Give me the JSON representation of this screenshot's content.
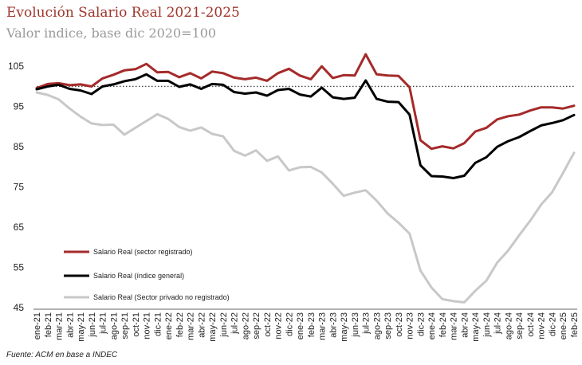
{
  "title": "Evolución Salario Real 2021-2025",
  "subtitle": "Valor indice, base dic 2020=100",
  "source": "Fuente: ACM en base a INDEC",
  "chart_data": {
    "type": "line",
    "ylim": [
      45,
      110
    ],
    "yticks": [
      45,
      55,
      65,
      75,
      85,
      95,
      105
    ],
    "reference_line": 100,
    "x": [
      "ene-21",
      "feb-21",
      "mar-21",
      "abr-21",
      "may-21",
      "jun-21",
      "jul-21",
      "ago-21",
      "sep-21",
      "oct-21",
      "nov-21",
      "dic-21",
      "ene-22",
      "feb-22",
      "mar-22",
      "abr-22",
      "may-22",
      "jun-22",
      "jul-22",
      "ago-22",
      "sep-22",
      "oct-22",
      "nov-22",
      "dic-22",
      "ene-23",
      "feb-23",
      "mar-23",
      "abr-23",
      "may-23",
      "jun-23",
      "jul-23",
      "ago-23",
      "sep-23",
      "oct-23",
      "nov-23",
      "dic-23",
      "ene-24",
      "feb-24",
      "mar-24",
      "abr-24",
      "may-24",
      "jun-24",
      "jul-24",
      "ago-24",
      "sep-24",
      "oct-24",
      "nov-24",
      "dic-24",
      "ene-25",
      "feb-25"
    ],
    "series": [
      {
        "name": "Salario Real (sector registrado)",
        "color": "#a52a2a",
        "values": [
          99.6,
          100.6,
          100.8,
          100.3,
          100.5,
          100.0,
          102.0,
          102.9,
          104.0,
          104.3,
          105.6,
          103.5,
          103.6,
          102.3,
          103.3,
          102.0,
          103.7,
          103.3,
          102.2,
          101.8,
          102.2,
          101.4,
          103.3,
          104.4,
          102.7,
          101.8,
          105.0,
          102.1,
          102.8,
          102.7,
          108.0,
          103.0,
          102.7,
          102.6,
          99.8,
          86.6,
          84.5,
          85.1,
          84.6,
          85.9,
          88.8,
          89.7,
          91.8,
          92.6,
          93.0,
          94.0,
          94.8,
          94.8,
          94.5,
          95.2
        ]
      },
      {
        "name": "Salario Real (índice general)",
        "color": "#000000",
        "values": [
          99.3,
          100.0,
          100.4,
          99.4,
          99.0,
          98.1,
          100.0,
          100.5,
          101.3,
          101.8,
          103.0,
          101.4,
          101.4,
          99.9,
          100.5,
          99.4,
          100.6,
          100.4,
          98.6,
          98.2,
          98.5,
          97.7,
          99.1,
          99.4,
          98.0,
          97.5,
          99.7,
          97.3,
          96.9,
          97.2,
          101.5,
          96.9,
          96.2,
          96.1,
          93.0,
          80.4,
          77.7,
          77.6,
          77.2,
          77.8,
          81.0,
          82.4,
          85.0,
          86.4,
          87.4,
          88.9,
          90.3,
          90.9,
          91.6,
          92.9
        ]
      },
      {
        "name": "Salario Real (Sector privado no registrado)",
        "color": "#c8c8c8",
        "values": [
          98.5,
          97.9,
          96.8,
          94.5,
          92.5,
          90.8,
          90.4,
          90.5,
          88.0,
          89.7,
          91.4,
          93.1,
          91.9,
          89.9,
          89.0,
          89.8,
          88.2,
          87.6,
          84.0,
          82.8,
          84.1,
          81.5,
          82.6,
          79.1,
          79.9,
          80.0,
          78.6,
          75.8,
          72.8,
          73.6,
          74.2,
          71.6,
          68.4,
          66.1,
          63.4,
          54.2,
          50.0,
          47.1,
          46.6,
          46.3,
          49.2,
          51.7,
          56.2,
          59.2,
          63.0,
          66.6,
          70.6,
          73.7,
          78.5,
          83.5
        ]
      }
    ],
    "legend": "inside-lower-left"
  }
}
